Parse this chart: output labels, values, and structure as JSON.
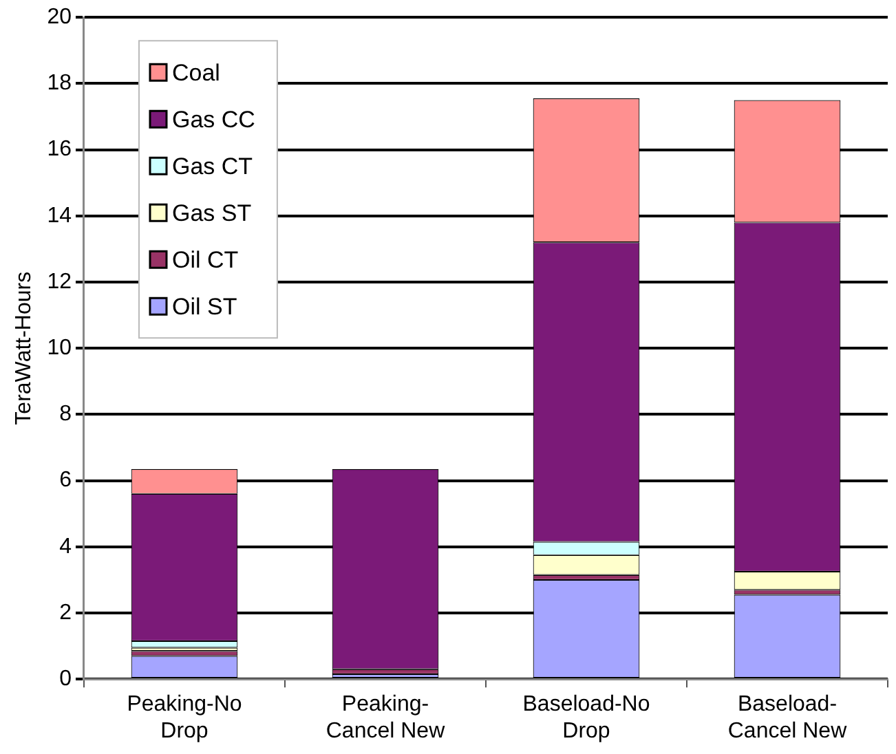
{
  "chart_data": {
    "type": "bar",
    "stacked": true,
    "ylabel": "TeraWatt-Hours",
    "categories": [
      "Peaking-No Drop",
      "Peaking-Cancel New",
      "Baseload-No Drop",
      "Baseload-Cancel New"
    ],
    "series": [
      {
        "name": "Oil ST",
        "color": "#a5a5ff",
        "values": [
          0.7,
          0.15,
          3.0,
          2.55
        ]
      },
      {
        "name": "Oil CT",
        "color": "#993366",
        "values": [
          0.15,
          0.15,
          0.15,
          0.15
        ]
      },
      {
        "name": "Gas ST",
        "color": "#ffffcc",
        "values": [
          0.1,
          0,
          0.6,
          0.55
        ]
      },
      {
        "name": "Gas CT",
        "color": "#ccffff",
        "values": [
          0.2,
          0,
          0.4,
          0
        ]
      },
      {
        "name": "Gas CC",
        "color": "#7b1a78",
        "values": [
          4.45,
          6.05,
          9.05,
          10.55
        ]
      },
      {
        "name": "Coal",
        "color": "#ff9090",
        "values": [
          0.75,
          0,
          4.35,
          3.7
        ]
      }
    ],
    "ylim": [
      0,
      20
    ],
    "yticks": [
      0,
      2,
      4,
      6,
      8,
      10,
      12,
      14,
      16,
      18,
      20
    ],
    "grid": "y",
    "legend": "top left"
  }
}
